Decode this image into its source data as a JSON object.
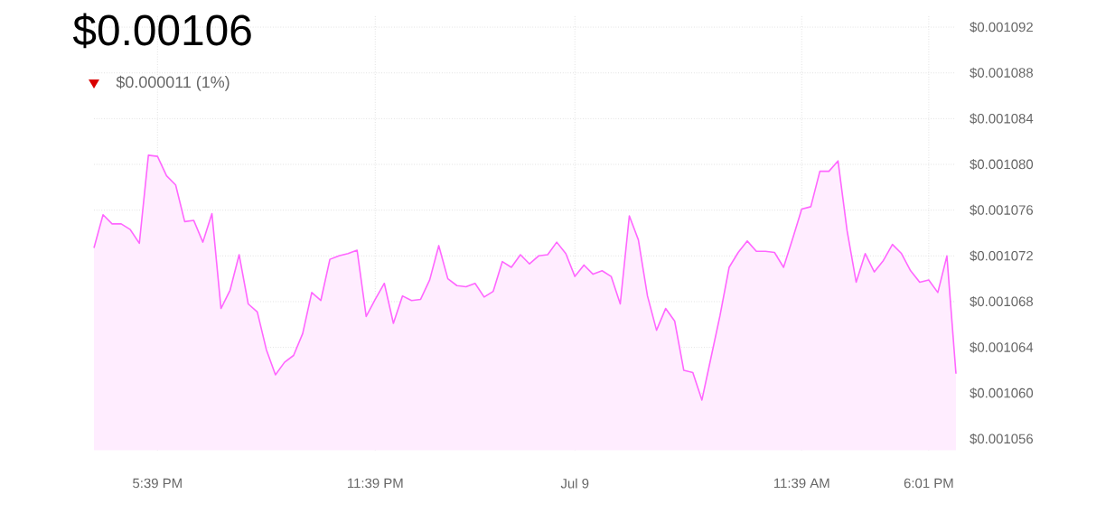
{
  "chart_data": {
    "type": "area",
    "title": "$0.00106",
    "subtitle": "$0.000011 (1%)",
    "categories": [
      null,
      null,
      null,
      null,
      null,
      null,
      null,
      "5:39 PM",
      null,
      null,
      null,
      null,
      null,
      null,
      null,
      null,
      null,
      null,
      null,
      null,
      null,
      null,
      null,
      null,
      null,
      null,
      null,
      null,
      null,
      null,
      null,
      "11:39 PM",
      null,
      null,
      null,
      null,
      null,
      null,
      null,
      null,
      null,
      null,
      null,
      null,
      null,
      null,
      null,
      null,
      null,
      null,
      null,
      null,
      null,
      "Jul 9",
      null,
      null,
      null,
      null,
      null,
      null,
      null,
      null,
      null,
      null,
      null,
      null,
      null,
      null,
      null,
      null,
      null,
      null,
      null,
      null,
      null,
      null,
      null,
      null,
      "11:39 AM",
      null,
      null,
      null,
      null,
      null,
      null,
      null,
      null,
      null,
      null,
      null,
      null,
      null,
      "6:01 PM",
      null,
      null,
      null
    ],
    "series": [
      {
        "color": "#ff66ff",
        "values": [
          0.0010727,
          0.0010756,
          0.0010748,
          0.0010748,
          0.0010743,
          0.0010731,
          0.0010808,
          0.0010807,
          0.001079,
          0.0010782,
          0.001075,
          0.0010751,
          0.0010732,
          0.0010757,
          0.0010674,
          0.001069,
          0.0010721,
          0.0010678,
          0.0010671,
          0.0010638,
          0.0010616,
          0.0010627,
          0.0010633,
          0.0010652,
          0.0010688,
          0.0010681,
          0.0010717,
          0.001072,
          0.0010722,
          0.0010725,
          0.0010667,
          0.0010682,
          0.0010696,
          0.0010661,
          0.0010685,
          0.0010681,
          0.0010682,
          0.0010699,
          0.0010729,
          0.00107,
          0.0010694,
          0.0010693,
          0.0010696,
          0.0010684,
          0.0010689,
          0.0010715,
          0.001071,
          0.0010721,
          0.0010713,
          0.001072,
          0.0010721,
          0.0010732,
          0.0010722,
          0.0010702,
          0.0010712,
          0.0010704,
          0.0010707,
          0.0010702,
          0.0010678,
          0.0010755,
          0.0010734,
          0.0010685,
          0.0010655,
          0.0010674,
          0.0010663,
          0.001062,
          0.0010618,
          0.0010594,
          0.0010631,
          0.0010668,
          0.001071,
          0.0010723,
          0.0010733,
          0.0010724,
          0.0010724,
          0.0010723,
          0.001071,
          0.0010735,
          0.0010761,
          0.0010763,
          0.0010794,
          0.0010794,
          0.0010803,
          0.0010742,
          0.0010697,
          0.0010722,
          0.0010706,
          0.0010716,
          0.001073,
          0.0010722,
          0.0010707,
          0.0010697,
          0.0010699,
          0.0010688,
          0.001072,
          0.0010617
        ]
      }
    ],
    "ylim": [
      0.001055,
      0.001093
    ],
    "yticks": [
      {
        "value": 0.001056,
        "label": "$0.001056"
      },
      {
        "value": 0.00106,
        "label": "$0.001060"
      },
      {
        "value": 0.001064,
        "label": "$0.001064"
      },
      {
        "value": 0.001068,
        "label": "$0.001068"
      },
      {
        "value": 0.001072,
        "label": "$0.001072"
      },
      {
        "value": 0.001076,
        "label": "$0.001076"
      },
      {
        "value": 0.00108,
        "label": "$0.001080"
      },
      {
        "value": 0.001084,
        "label": "$0.001084"
      },
      {
        "value": 0.001088,
        "label": "$0.001088"
      },
      {
        "value": 0.001092,
        "label": "$0.001092"
      }
    ],
    "grid": true
  }
}
